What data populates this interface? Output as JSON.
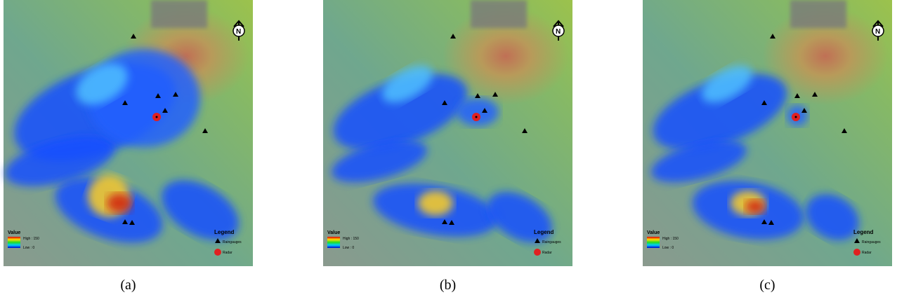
{
  "panels": [
    {
      "caption": "(a)",
      "legend": {
        "value_title": "Value",
        "high": "High : 150",
        "low": "Low : 0",
        "title": "Legend",
        "gauges": "Raingauges",
        "radar": "Radar"
      }
    },
    {
      "caption": "(b)",
      "legend": {
        "value_title": "Value",
        "high": "High : 150",
        "low": "Low : 0",
        "title": "Legend",
        "gauges": "Raingauges",
        "radar": "Radar"
      }
    },
    {
      "caption": "(c)",
      "legend": {
        "value_title": "Value",
        "high": "High : 150",
        "low": "Low : 0",
        "title": "Legend",
        "gauges": "Raingauges",
        "radar": "Radar"
      }
    }
  ]
}
